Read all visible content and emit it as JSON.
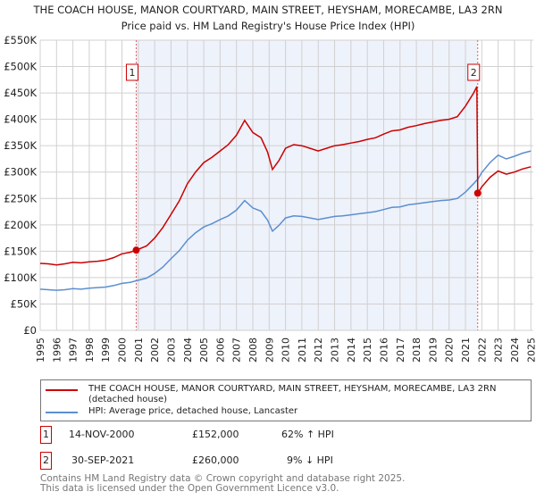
{
  "title": "THE COACH HOUSE, MANOR COURTYARD, MAIN STREET, HEYSHAM, MORECAMBE, LA3 2RN",
  "subtitle": "Price paid vs. HM Land Registry's House Price Index (HPI)",
  "chart_data": {
    "type": "line",
    "xlim": [
      1995,
      2025
    ],
    "ylim": [
      0,
      550000
    ],
    "x_ticks": [
      "1995",
      "1996",
      "1997",
      "1998",
      "1999",
      "2000",
      "2001",
      "2002",
      "2003",
      "2004",
      "2005",
      "2006",
      "2007",
      "2008",
      "2009",
      "2010",
      "2011",
      "2012",
      "2013",
      "2014",
      "2015",
      "2016",
      "2017",
      "2018",
      "2019",
      "2020",
      "2021",
      "2022",
      "2023",
      "2024",
      "2025"
    ],
    "y_ticks": [
      {
        "v": 0,
        "label": "£0"
      },
      {
        "v": 50000,
        "label": "£50K"
      },
      {
        "v": 100000,
        "label": "£100K"
      },
      {
        "v": 150000,
        "label": "£150K"
      },
      {
        "v": 200000,
        "label": "£200K"
      },
      {
        "v": 250000,
        "label": "£250K"
      },
      {
        "v": 300000,
        "label": "£300K"
      },
      {
        "v": 350000,
        "label": "£350K"
      },
      {
        "v": 400000,
        "label": "£400K"
      },
      {
        "v": 450000,
        "label": "£450K"
      },
      {
        "v": 500000,
        "label": "£500K"
      },
      {
        "v": 550000,
        "label": "£550K"
      }
    ],
    "grid": true,
    "shaded_range": [
      2000.87,
      2021.75
    ],
    "colors": {
      "red": "#cc0000",
      "blue": "#5b8fd0",
      "shade": "#eef2fb"
    },
    "series": [
      {
        "name": "THE COACH HOUSE, MANOR COURTYARD, MAIN STREET, HEYSHAM, MORECAMBE, LA3 2RN (detached house)",
        "color": "#cc0000",
        "x": [
          1995,
          1995.5,
          1996,
          1996.5,
          1997,
          1997.5,
          1998,
          1998.5,
          1999,
          1999.5,
          2000,
          2000.5,
          2000.87,
          2001.5,
          2002,
          2002.5,
          2003,
          2003.5,
          2004,
          2004.5,
          2005,
          2005.5,
          2006,
          2006.5,
          2007,
          2007.5,
          2008,
          2008.5,
          2008.9,
          2009.2,
          2009.6,
          2010,
          2010.5,
          2011,
          2011.5,
          2012,
          2012.5,
          2013,
          2013.5,
          2014,
          2014.5,
          2015,
          2015.5,
          2016,
          2016.5,
          2017,
          2017.5,
          2018,
          2018.5,
          2019,
          2019.5,
          2020,
          2020.5,
          2021,
          2021.5,
          2021.7,
          2021.75,
          2022,
          2022.5,
          2023,
          2023.5,
          2024,
          2024.5,
          2025
        ],
        "y": [
          127000,
          126000,
          124000,
          126000,
          129000,
          128000,
          130000,
          131000,
          133000,
          138000,
          145000,
          148000,
          152000,
          160000,
          175000,
          195000,
          220000,
          245000,
          278000,
          300000,
          318000,
          328000,
          340000,
          352000,
          370000,
          398000,
          375000,
          365000,
          338000,
          305000,
          322000,
          345000,
          352000,
          350000,
          345000,
          340000,
          345000,
          350000,
          352000,
          355000,
          358000,
          362000,
          365000,
          372000,
          378000,
          380000,
          385000,
          388000,
          392000,
          395000,
          398000,
          400000,
          405000,
          425000,
          450000,
          462000,
          260000,
          272000,
          290000,
          302000,
          296000,
          300000,
          306000,
          310000
        ]
      },
      {
        "name": "HPI: Average price, detached house, Lancaster",
        "color": "#5b8fd0",
        "x": [
          1995,
          1995.5,
          1996,
          1996.5,
          1997,
          1997.5,
          1998,
          1998.5,
          1999,
          1999.5,
          2000,
          2000.5,
          2000.87,
          2001.5,
          2002,
          2002.5,
          2003,
          2003.5,
          2004,
          2004.5,
          2005,
          2005.5,
          2006,
          2006.5,
          2007,
          2007.5,
          2008,
          2008.5,
          2008.9,
          2009.2,
          2009.6,
          2010,
          2010.5,
          2011,
          2011.5,
          2012,
          2012.5,
          2013,
          2013.5,
          2014,
          2014.5,
          2015,
          2015.5,
          2016,
          2016.5,
          2017,
          2017.5,
          2018,
          2018.5,
          2019,
          2019.5,
          2020,
          2020.5,
          2021,
          2021.5,
          2021.7,
          2021.75,
          2022,
          2022.5,
          2023,
          2023.5,
          2024,
          2024.5,
          2025
        ],
        "y": [
          78000,
          77000,
          76000,
          77000,
          79000,
          78000,
          80000,
          81000,
          82000,
          85000,
          89000,
          91000,
          94000,
          99000,
          108000,
          120000,
          136000,
          151000,
          171000,
          185000,
          196000,
          202000,
          210000,
          217000,
          228000,
          246000,
          232000,
          226000,
          209000,
          188000,
          199000,
          213000,
          217000,
          216000,
          213000,
          210000,
          213000,
          216000,
          217000,
          219000,
          221000,
          223000,
          225000,
          229000,
          233000,
          234000,
          238000,
          240000,
          242000,
          244000,
          246000,
          247000,
          250000,
          262000,
          278000,
          285000,
          286000,
          299000,
          318000,
          332000,
          325000,
          330000,
          336000,
          340000
        ]
      }
    ],
    "sales": [
      {
        "label": "1",
        "x": 2000.87,
        "y": 152000
      },
      {
        "label": "2",
        "x": 2021.75,
        "y": 260000
      }
    ]
  },
  "legend": {
    "red_label": "THE COACH HOUSE, MANOR COURTYARD, MAIN STREET, HEYSHAM, MORECAMBE, LA3 2RN (detached house)",
    "blue_label": "HPI: Average price, detached house, Lancaster"
  },
  "transactions": [
    {
      "num": "1",
      "date": "14-NOV-2000",
      "price": "£152,000",
      "hpi": "62% ↑ HPI"
    },
    {
      "num": "2",
      "date": "30-SEP-2021",
      "price": "£260,000",
      "hpi": "9% ↓ HPI"
    }
  ],
  "footer": {
    "line1": "Contains HM Land Registry data © Crown copyright and database right 2025.",
    "line2": "This data is licensed under the Open Government Licence v3.0."
  }
}
